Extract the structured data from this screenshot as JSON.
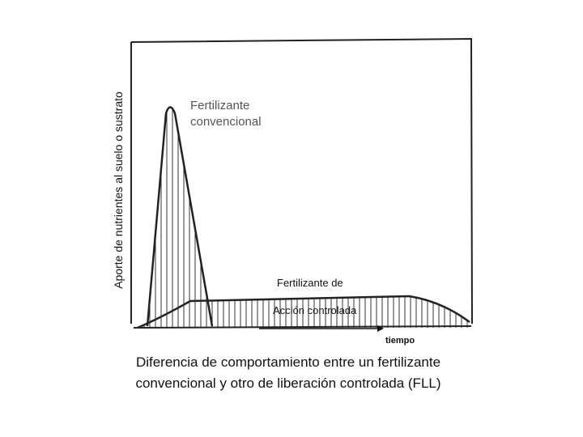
{
  "axis": {
    "y_label": "Aporte de nutrientes al suelo o sustrato",
    "x_label": "tiempo"
  },
  "curves": [
    {
      "label_lines": [
        "Fertilizante",
        "convencional"
      ]
    },
    {
      "label_lines": [
        "Fertilizante de",
        "Acción controlada"
      ]
    }
  ],
  "caption": {
    "lines": [
      "Diferencia de comportamiento entre un fertilizante",
      "convencional y otro de liberación controlada (FLL)"
    ]
  }
}
